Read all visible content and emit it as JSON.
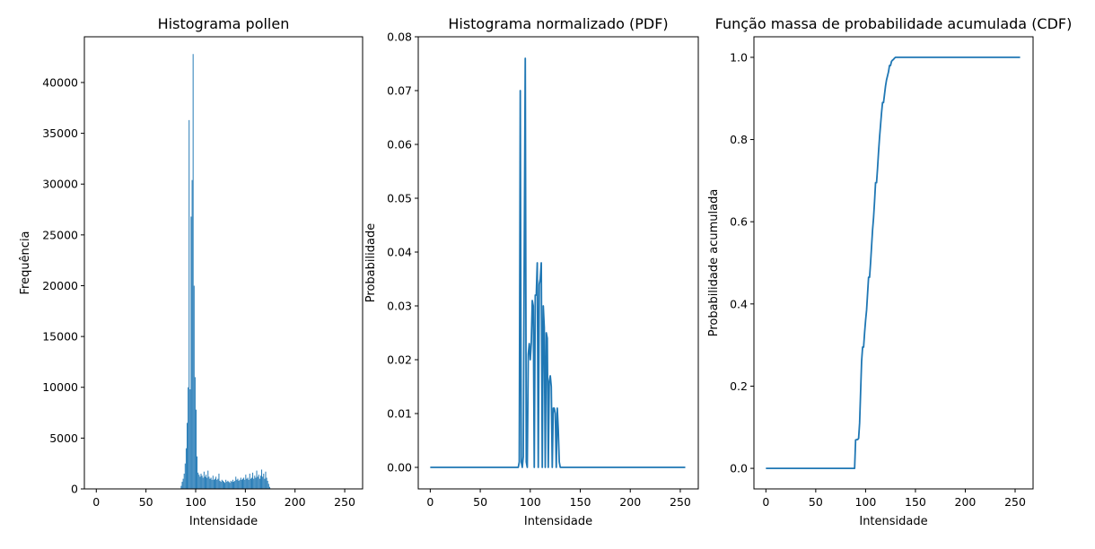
{
  "chart_data": [
    {
      "type": "bar",
      "title": "Histograma pollen",
      "xlabel": "Intensidade",
      "ylabel": "Frequência",
      "xlim": [
        -12,
        268
      ],
      "ylim": [
        0,
        44500
      ],
      "xticks": [
        0,
        50,
        100,
        150,
        200,
        250
      ],
      "yticks": [
        0,
        5000,
        10000,
        15000,
        20000,
        25000,
        30000,
        35000,
        40000
      ],
      "color": "#1f77b4",
      "x": [
        85,
        86,
        87,
        88,
        89,
        90,
        91,
        92,
        93,
        94,
        95,
        96,
        97,
        98,
        99,
        100,
        101,
        102,
        103,
        104,
        105,
        106,
        107,
        108,
        109,
        110,
        111,
        112,
        113,
        114,
        115,
        116,
        117,
        118,
        119,
        120,
        121,
        122,
        123,
        124,
        125,
        126,
        127,
        128,
        129,
        130,
        131,
        132,
        133,
        134,
        135,
        136,
        137,
        138,
        139,
        140,
        141,
        142,
        143,
        144,
        145,
        146,
        147,
        148,
        149,
        150,
        151,
        152,
        153,
        154,
        155,
        156,
        157,
        158,
        159,
        160,
        161,
        162,
        163,
        164,
        165,
        166,
        167,
        168,
        169,
        170,
        171,
        172,
        173,
        174,
        175
      ],
      "values": [
        300,
        700,
        1000,
        1500,
        2500,
        4000,
        6500,
        10000,
        36300,
        9800,
        26800,
        30400,
        42800,
        20000,
        11000,
        7800,
        3200,
        1600,
        1400,
        1200,
        1500,
        1300,
        1100,
        1700,
        1200,
        1400,
        1100,
        1800,
        1200,
        1000,
        1100,
        900,
        1300,
        900,
        1000,
        1200,
        900,
        1000,
        1500,
        800,
        700,
        900,
        800,
        700,
        600,
        900,
        700,
        800,
        700,
        600,
        800,
        700,
        900,
        700,
        800,
        1200,
        900,
        1000,
        800,
        900,
        1100,
        900,
        1000,
        1100,
        900,
        1400,
        1000,
        1100,
        900,
        1500,
        1000,
        1100,
        1600,
        1000,
        1300,
        1100,
        1800,
        1200,
        1400,
        1000,
        1300,
        1900,
        1200,
        1500,
        1000,
        1700,
        1100,
        800,
        500,
        200,
        50
      ]
    },
    {
      "type": "line",
      "title": "Histograma normalizado (PDF)",
      "xlabel": "Intensidade",
      "ylabel": "Probabilidade",
      "xlim": [
        -12,
        268
      ],
      "ylim": [
        -0.004,
        0.08
      ],
      "xticks": [
        0,
        50,
        100,
        150,
        200,
        250
      ],
      "yticks": [
        0.0,
        0.01,
        0.02,
        0.03,
        0.04,
        0.05,
        0.06,
        0.07,
        0.08
      ],
      "ytick_labels": [
        "0.00",
        "0.01",
        "0.02",
        "0.03",
        "0.04",
        "0.05",
        "0.06",
        "0.07",
        "0.08"
      ],
      "color": "#1f77b4",
      "x": [
        0,
        88,
        89,
        90,
        91,
        92,
        93,
        94,
        95,
        96,
        97,
        98,
        99,
        100,
        101,
        102,
        103,
        104,
        105,
        106,
        107,
        108,
        109,
        110,
        111,
        112,
        113,
        114,
        115,
        116,
        117,
        118,
        119,
        120,
        121,
        122,
        123,
        124,
        125,
        126,
        127,
        128,
        129,
        130,
        131,
        132,
        133,
        134,
        135,
        136,
        255
      ],
      "y": [
        0,
        0,
        0.001,
        0.07,
        0.001,
        0,
        0.002,
        0.04,
        0.076,
        0.001,
        0,
        0.021,
        0.023,
        0.02,
        0.023,
        0.031,
        0.03,
        0.0,
        0.032,
        0.032,
        0.038,
        0.0,
        0.034,
        0.035,
        0.038,
        0.0,
        0.03,
        0.026,
        0.0,
        0.025,
        0.024,
        0.0,
        0.016,
        0.017,
        0.015,
        0.0,
        0.011,
        0.011,
        0.01,
        0.0,
        0.011,
        0.007,
        0.001,
        0,
        0,
        0,
        0,
        0,
        0,
        0,
        0
      ]
    },
    {
      "type": "line",
      "title": "Função massa de probabilidade acumulada  (CDF)",
      "xlabel": "Intensidade",
      "ylabel": "Probabilidade acumulada",
      "xlim": [
        -12,
        268
      ],
      "ylim": [
        -0.05,
        1.05
      ],
      "xticks": [
        0,
        50,
        100,
        150,
        200,
        250
      ],
      "yticks": [
        0.0,
        0.2,
        0.4,
        0.6,
        0.8,
        1.0
      ],
      "ytick_labels": [
        "0.0",
        "0.2",
        "0.4",
        "0.6",
        "0.8",
        "1.0"
      ],
      "color": "#1f77b4",
      "x": [
        0,
        89,
        90,
        91,
        92,
        93,
        94,
        95,
        96,
        97,
        98,
        99,
        100,
        101,
        102,
        103,
        104,
        105,
        106,
        107,
        108,
        109,
        110,
        111,
        112,
        113,
        114,
        115,
        116,
        117,
        118,
        119,
        120,
        121,
        122,
        123,
        124,
        125,
        126,
        127,
        128,
        129,
        130,
        131,
        132,
        133,
        134,
        135,
        136,
        137,
        138,
        140,
        255
      ],
      "y": [
        0,
        0,
        0.069,
        0.07,
        0.07,
        0.073,
        0.11,
        0.185,
        0.26,
        0.295,
        0.295,
        0.33,
        0.36,
        0.385,
        0.425,
        0.465,
        0.465,
        0.5,
        0.54,
        0.58,
        0.61,
        0.65,
        0.695,
        0.695,
        0.73,
        0.77,
        0.805,
        0.835,
        0.865,
        0.89,
        0.89,
        0.91,
        0.93,
        0.945,
        0.955,
        0.965,
        0.98,
        0.98,
        0.99,
        0.993,
        0.995,
        0.998,
        1.0,
        1.0,
        1.0,
        1.0,
        1.0,
        1.0,
        1.0,
        1.0,
        1.0,
        1.0,
        1.0
      ]
    }
  ]
}
